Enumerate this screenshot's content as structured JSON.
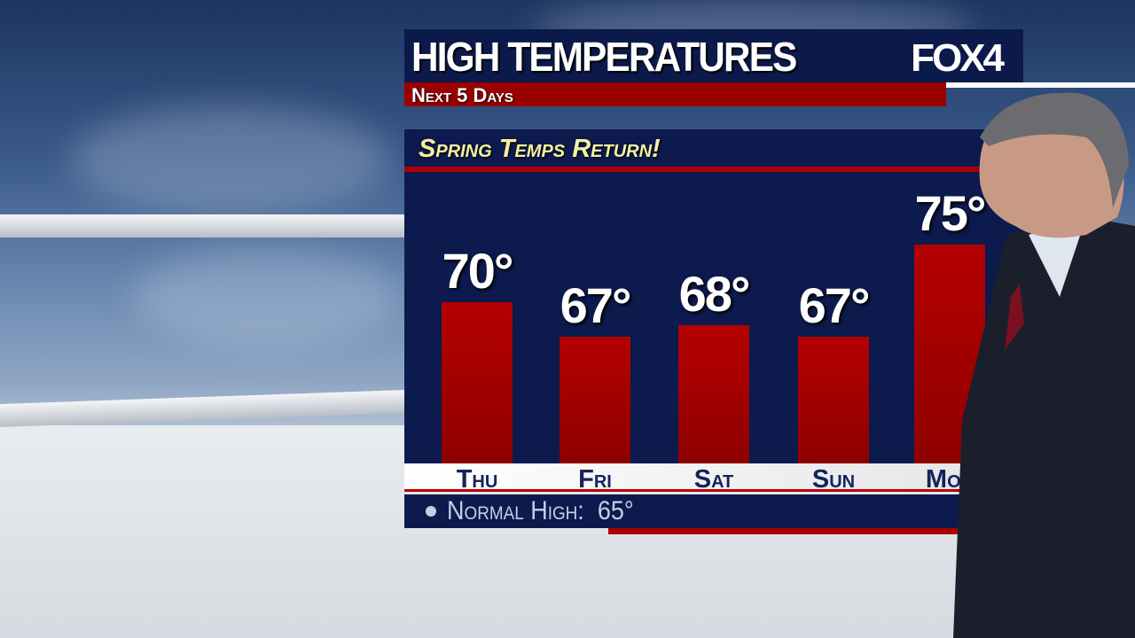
{
  "header": {
    "title": "High Temperatures",
    "logo": "FOX4",
    "subtitle": "Next 5 Days"
  },
  "headline": "Spring Temps Return!",
  "normal": {
    "label": "Normal High:",
    "value": "65°"
  },
  "colors": {
    "navy": "#0c1a4d",
    "red": "#9a0000",
    "headline": "#f5f0a0"
  },
  "chart_data": {
    "type": "bar",
    "title": "High Temperatures",
    "categories": [
      "Thu",
      "Fri",
      "Sat",
      "Sun",
      "Mon"
    ],
    "values": [
      70,
      67,
      68,
      67,
      75
    ],
    "labels": [
      "70°",
      "67°",
      "68°",
      "67°",
      "75°"
    ],
    "unit": "°F"
  }
}
